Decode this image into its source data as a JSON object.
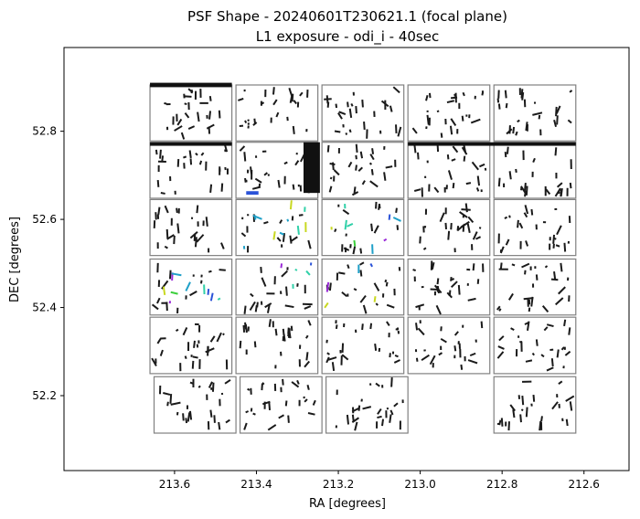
{
  "chart_data": {
    "type": "scatter",
    "title": "PSF Shape - 20240601T230621.1 (focal plane)",
    "subtitle": "L1 exposure - odi_i - 40sec",
    "xlabel": "RA [degrees]",
    "ylabel": "DEC [degrees]",
    "xlim": [
      213.87,
      212.49
    ],
    "ylim": [
      52.03,
      52.99
    ],
    "x_inverted": true,
    "grid": false,
    "xticks": [
      213.6,
      213.4,
      213.2,
      213.0,
      212.8,
      212.6
    ],
    "xtick_labels": [
      "213.6",
      "213.4",
      "213.2",
      "213.0",
      "212.8",
      "212.6"
    ],
    "yticks": [
      52.2,
      52.4,
      52.6,
      52.8
    ],
    "ytick_labels": [
      "52.2",
      "52.4",
      "52.6",
      "52.8"
    ],
    "colors": {
      "frame": "#000000",
      "chip_outline": "#808080",
      "whisker_default": "#1a1a1a",
      "whisker_accents": [
        "#2a52d8",
        "#1fa0c8",
        "#3ccf3c",
        "#9a2ad8",
        "#c8d820",
        "#30d0a8"
      ]
    },
    "chips": [
      {
        "ra0": 213.66,
        "ra1": 213.46,
        "dec0": 52.778,
        "dec1": 52.905
      },
      {
        "ra0": 213.45,
        "ra1": 213.25,
        "dec0": 52.778,
        "dec1": 52.905
      },
      {
        "ra0": 213.24,
        "ra1": 213.04,
        "dec0": 52.778,
        "dec1": 52.905
      },
      {
        "ra0": 213.03,
        "ra1": 212.83,
        "dec0": 52.778,
        "dec1": 52.905
      },
      {
        "ra0": 212.82,
        "ra1": 212.62,
        "dec0": 52.778,
        "dec1": 52.905
      },
      {
        "ra0": 213.66,
        "ra1": 213.46,
        "dec0": 52.648,
        "dec1": 52.775
      },
      {
        "ra0": 213.45,
        "ra1": 213.25,
        "dec0": 52.648,
        "dec1": 52.775
      },
      {
        "ra0": 213.24,
        "ra1": 213.04,
        "dec0": 52.648,
        "dec1": 52.775
      },
      {
        "ra0": 213.03,
        "ra1": 212.83,
        "dec0": 52.648,
        "dec1": 52.775
      },
      {
        "ra0": 212.82,
        "ra1": 212.62,
        "dec0": 52.648,
        "dec1": 52.775
      },
      {
        "ra0": 213.66,
        "ra1": 213.46,
        "dec0": 52.518,
        "dec1": 52.645
      },
      {
        "ra0": 213.45,
        "ra1": 213.25,
        "dec0": 52.518,
        "dec1": 52.645
      },
      {
        "ra0": 213.24,
        "ra1": 213.04,
        "dec0": 52.518,
        "dec1": 52.645
      },
      {
        "ra0": 213.03,
        "ra1": 212.83,
        "dec0": 52.518,
        "dec1": 52.645
      },
      {
        "ra0": 212.82,
        "ra1": 212.62,
        "dec0": 52.518,
        "dec1": 52.645
      },
      {
        "ra0": 213.66,
        "ra1": 213.46,
        "dec0": 52.383,
        "dec1": 52.51
      },
      {
        "ra0": 213.45,
        "ra1": 213.25,
        "dec0": 52.383,
        "dec1": 52.51
      },
      {
        "ra0": 213.24,
        "ra1": 213.04,
        "dec0": 52.383,
        "dec1": 52.51
      },
      {
        "ra0": 213.03,
        "ra1": 212.83,
        "dec0": 52.383,
        "dec1": 52.51
      },
      {
        "ra0": 212.82,
        "ra1": 212.62,
        "dec0": 52.383,
        "dec1": 52.51
      },
      {
        "ra0": 213.66,
        "ra1": 213.46,
        "dec0": 52.25,
        "dec1": 52.378
      },
      {
        "ra0": 213.45,
        "ra1": 213.25,
        "dec0": 52.25,
        "dec1": 52.378
      },
      {
        "ra0": 213.24,
        "ra1": 213.04,
        "dec0": 52.25,
        "dec1": 52.378
      },
      {
        "ra0": 213.03,
        "ra1": 212.83,
        "dec0": 52.25,
        "dec1": 52.378
      },
      {
        "ra0": 212.82,
        "ra1": 212.62,
        "dec0": 52.25,
        "dec1": 52.378
      },
      {
        "ra0": 213.65,
        "ra1": 213.45,
        "dec0": 52.115,
        "dec1": 52.243
      },
      {
        "ra0": 213.44,
        "ra1": 213.24,
        "dec0": 52.115,
        "dec1": 52.243
      },
      {
        "ra0": 213.23,
        "ra1": 213.03,
        "dec0": 52.115,
        "dec1": 52.243
      },
      {
        "ra0": 212.82,
        "ra1": 212.62,
        "dec0": 52.115,
        "dec1": 52.243
      }
    ],
    "dense_regions": [
      {
        "ra0": 213.285,
        "ra1": 213.245,
        "dec0": 52.66,
        "dec1": 52.775,
        "color": "#111111"
      },
      {
        "ra0": 213.66,
        "ra1": 213.46,
        "dec0": 52.9,
        "dec1": 52.91,
        "color": "#111111"
      },
      {
        "ra0": 213.66,
        "ra1": 213.46,
        "dec0": 52.767,
        "dec1": 52.775,
        "color": "#111111"
      },
      {
        "ra0": 213.03,
        "ra1": 212.62,
        "dec0": 52.767,
        "dec1": 52.775,
        "color": "#111111"
      },
      {
        "ra0": 213.425,
        "ra1": 213.395,
        "dec0": 52.656,
        "dec1": 52.664,
        "color": "#2a52d8"
      }
    ]
  }
}
